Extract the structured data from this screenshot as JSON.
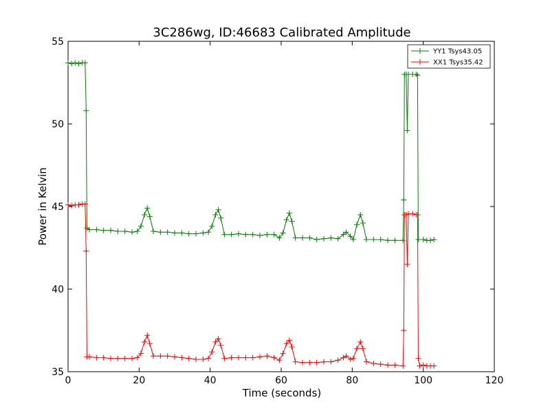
{
  "chart_data": {
    "type": "line",
    "title": "3C286wg, ID:46683 Calibrated Amplitude",
    "xlabel": "Time (seconds)",
    "ylabel": "Power in Kelvin",
    "xlim": [
      0,
      120
    ],
    "ylim": [
      35,
      55
    ],
    "xticks": [
      0,
      20,
      40,
      60,
      80,
      100,
      120
    ],
    "yticks": [
      35,
      40,
      45,
      50,
      55
    ],
    "grid": false,
    "legend_position": "top-right",
    "marker": "plus",
    "series": [
      {
        "name": "YY1 Tsys43.05",
        "color": "#008000",
        "points": [
          [
            0,
            53.7
          ],
          [
            1,
            53.65
          ],
          [
            2,
            53.7
          ],
          [
            3,
            53.65
          ],
          [
            4,
            53.7
          ],
          [
            4.8,
            53.7
          ],
          [
            5.1,
            50.8
          ],
          [
            5.3,
            43.7
          ],
          [
            6,
            43.6
          ],
          [
            8,
            43.6
          ],
          [
            10,
            43.55
          ],
          [
            12,
            43.55
          ],
          [
            14,
            43.5
          ],
          [
            16,
            43.5
          ],
          [
            18,
            43.45
          ],
          [
            19.5,
            43.5
          ],
          [
            20.5,
            43.8
          ],
          [
            21.5,
            44.5
          ],
          [
            22.3,
            44.9
          ],
          [
            23,
            44.4
          ],
          [
            24,
            43.5
          ],
          [
            26,
            43.45
          ],
          [
            28,
            43.45
          ],
          [
            30,
            43.4
          ],
          [
            32,
            43.4
          ],
          [
            34,
            43.35
          ],
          [
            36,
            43.35
          ],
          [
            38,
            43.4
          ],
          [
            39.5,
            43.45
          ],
          [
            40.5,
            43.8
          ],
          [
            41.5,
            44.5
          ],
          [
            42.3,
            44.8
          ],
          [
            43,
            44.3
          ],
          [
            44,
            43.3
          ],
          [
            46,
            43.3
          ],
          [
            48,
            43.35
          ],
          [
            50,
            43.3
          ],
          [
            52,
            43.3
          ],
          [
            54,
            43.25
          ],
          [
            56,
            43.3
          ],
          [
            58,
            43.3
          ],
          [
            59.5,
            43.1
          ],
          [
            60.5,
            43.4
          ],
          [
            61.5,
            44.2
          ],
          [
            62.3,
            44.6
          ],
          [
            63,
            44.1
          ],
          [
            64,
            43.1
          ],
          [
            66,
            43.1
          ],
          [
            68,
            43.1
          ],
          [
            70,
            43.0
          ],
          [
            72,
            43.05
          ],
          [
            74,
            43.1
          ],
          [
            76,
            43.05
          ],
          [
            77.5,
            43.3
          ],
          [
            78.3,
            43.45
          ],
          [
            79.5,
            43.2
          ],
          [
            80.3,
            43.0
          ],
          [
            81.3,
            43.9
          ],
          [
            82.3,
            44.5
          ],
          [
            83,
            44.0
          ],
          [
            84,
            43.0
          ],
          [
            86,
            43.0
          ],
          [
            88,
            43.0
          ],
          [
            90,
            42.95
          ],
          [
            92,
            42.95
          ],
          [
            94.3,
            42.95
          ],
          [
            94.5,
            45.4
          ],
          [
            94.7,
            53.0
          ],
          [
            95.2,
            53.0
          ],
          [
            95.5,
            49.6
          ],
          [
            95.8,
            53.0
          ],
          [
            97,
            53.0
          ],
          [
            98,
            53.0
          ],
          [
            98.4,
            52.95
          ],
          [
            98.6,
            43.0
          ],
          [
            100,
            43.0
          ],
          [
            101,
            42.95
          ],
          [
            102,
            42.95
          ],
          [
            103,
            43.0
          ]
        ]
      },
      {
        "name": "XX1 Tsys35.42",
        "color": "#ff0000",
        "points": [
          [
            0,
            45.1
          ],
          [
            1,
            45.05
          ],
          [
            2,
            45.1
          ],
          [
            3,
            45.1
          ],
          [
            4,
            45.15
          ],
          [
            4.8,
            45.15
          ],
          [
            5.1,
            42.3
          ],
          [
            5.3,
            35.9
          ],
          [
            6,
            35.9
          ],
          [
            8,
            35.85
          ],
          [
            10,
            35.85
          ],
          [
            12,
            35.8
          ],
          [
            14,
            35.8
          ],
          [
            16,
            35.8
          ],
          [
            18,
            35.8
          ],
          [
            19.5,
            35.85
          ],
          [
            20.5,
            36.1
          ],
          [
            21.5,
            36.8
          ],
          [
            22.3,
            37.2
          ],
          [
            23,
            36.7
          ],
          [
            24,
            35.95
          ],
          [
            26,
            35.95
          ],
          [
            28,
            35.95
          ],
          [
            30,
            35.9
          ],
          [
            32,
            35.85
          ],
          [
            34,
            35.8
          ],
          [
            36,
            35.75
          ],
          [
            38,
            35.75
          ],
          [
            39.5,
            35.8
          ],
          [
            40.5,
            36.2
          ],
          [
            41.5,
            36.8
          ],
          [
            42.3,
            37.0
          ],
          [
            43,
            36.6
          ],
          [
            44,
            35.8
          ],
          [
            46,
            35.85
          ],
          [
            48,
            35.85
          ],
          [
            50,
            35.85
          ],
          [
            52,
            35.85
          ],
          [
            54,
            35.9
          ],
          [
            56,
            35.95
          ],
          [
            58,
            35.85
          ],
          [
            59.5,
            35.7
          ],
          [
            60.5,
            36.1
          ],
          [
            61.5,
            36.7
          ],
          [
            62.3,
            36.9
          ],
          [
            63,
            36.5
          ],
          [
            64,
            35.6
          ],
          [
            66,
            35.55
          ],
          [
            68,
            35.55
          ],
          [
            70,
            35.55
          ],
          [
            72,
            35.6
          ],
          [
            74,
            35.6
          ],
          [
            76,
            35.7
          ],
          [
            77.5,
            35.85
          ],
          [
            78.3,
            35.95
          ],
          [
            79.5,
            35.75
          ],
          [
            80.3,
            35.8
          ],
          [
            81.3,
            36.4
          ],
          [
            82.3,
            36.8
          ],
          [
            83,
            36.4
          ],
          [
            84,
            35.6
          ],
          [
            86,
            35.5
          ],
          [
            88,
            35.45
          ],
          [
            90,
            35.4
          ],
          [
            92,
            35.4
          ],
          [
            94.3,
            35.35
          ],
          [
            94.5,
            37.5
          ],
          [
            94.7,
            44.5
          ],
          [
            95.2,
            44.5
          ],
          [
            95.5,
            41.5
          ],
          [
            95.8,
            44.55
          ],
          [
            97,
            44.55
          ],
          [
            98,
            44.5
          ],
          [
            98.4,
            44.5
          ],
          [
            98.6,
            35.8
          ],
          [
            99,
            35.35
          ],
          [
            100,
            35.4
          ],
          [
            101,
            35.35
          ],
          [
            102,
            35.35
          ],
          [
            103,
            35.35
          ]
        ]
      }
    ]
  }
}
